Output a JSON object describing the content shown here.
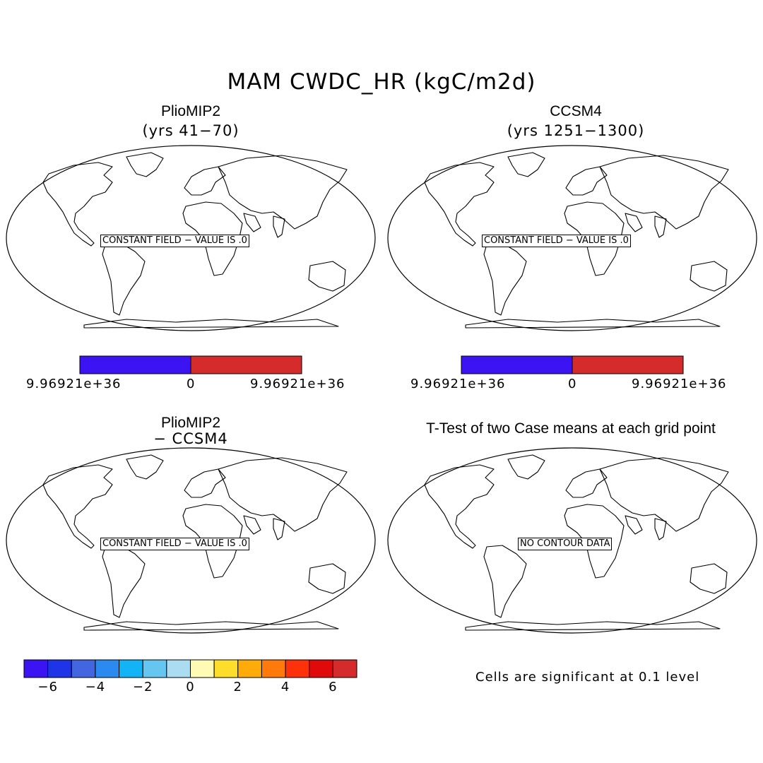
{
  "title": "MAM CWDC_HR (kgC/m2d)",
  "panels": [
    {
      "title": "PlioMIP2",
      "subtitle": "(yrs 41−70)",
      "message": "CONSTANT FIELD − VALUE IS .0"
    },
    {
      "title": "CCSM4",
      "subtitle": "(yrs 1251−1300)",
      "message": "CONSTANT FIELD − VALUE IS .0"
    },
    {
      "title": "PlioMIP2",
      "subtitle": "− CCSM4",
      "message": "CONSTANT FIELD − VALUE IS .0"
    },
    {
      "title": "T-Test of two Case means at each grid point",
      "subtitle": "",
      "message": "NO CONTOUR DATA"
    }
  ],
  "colorbar_top": {
    "colors": [
      "#3c13f2",
      "#d62b2b"
    ],
    "labels": [
      "9.96921e+36",
      "0",
      "9.96921e+36"
    ]
  },
  "colorbar_diff": {
    "colors": [
      "#3c13f2",
      "#1d35e6",
      "#4266e0",
      "#2b8af0",
      "#12b4f5",
      "#65c6f2",
      "#aadcf2",
      "#fffab4",
      "#ffdd2b",
      "#ffab0a",
      "#ff7a0a",
      "#ff310a",
      "#e00a0a",
      "#d62b2b"
    ],
    "labels": [
      "−6",
      "−4",
      "−2",
      "0",
      "2",
      "4",
      "6"
    ]
  },
  "significance_note": "Cells are significant at 0.1 level"
}
